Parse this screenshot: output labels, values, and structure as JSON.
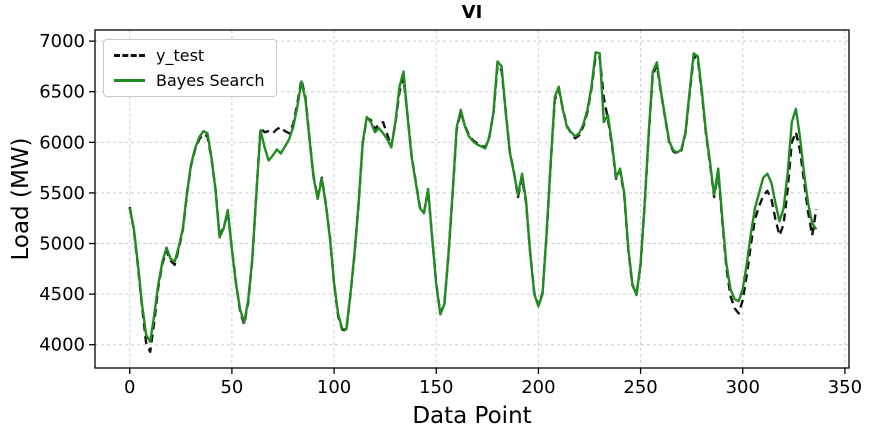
{
  "chart": {
    "title": "VI",
    "xlabel": "Data Point",
    "ylabel": "Load (MW)",
    "legend": [
      {
        "label": "y_test",
        "color": "#111111",
        "style": "dashed"
      },
      {
        "label": "Bayes Search",
        "color": "#228B22",
        "style": "solid"
      }
    ]
  },
  "chart_data": {
    "type": "line",
    "title": "VI",
    "xlabel": "Data Point",
    "ylabel": "Load (MW)",
    "xlim": [
      -17,
      352
    ],
    "ylim": [
      3770,
      7110
    ],
    "xticks": [
      0,
      50,
      100,
      150,
      200,
      250,
      300,
      350
    ],
    "yticks": [
      4000,
      4500,
      5000,
      5500,
      6000,
      6500,
      7000
    ],
    "grid": true,
    "grid_color": "#cccccc",
    "legend_position": "upper-left",
    "x_start": 0,
    "x_step": 2,
    "series": [
      {
        "name": "y_test",
        "color": "#111111",
        "dash": "8 5",
        "width": 2.4,
        "values": [
          5360,
          5140,
          4780,
          4380,
          4020,
          3930,
          4230,
          4570,
          4800,
          4930,
          4830,
          4790,
          4950,
          5140,
          5490,
          5770,
          5930,
          6030,
          6080,
          6060,
          5840,
          5530,
          5070,
          5160,
          5310,
          4950,
          4610,
          4330,
          4200,
          4430,
          4840,
          5500,
          6140,
          6100,
          6110,
          6090,
          6130,
          6150,
          6110,
          6090,
          6180,
          6380,
          6620,
          6440,
          6030,
          5660,
          5450,
          5650,
          5390,
          5060,
          4600,
          4280,
          4150,
          4140,
          4490,
          4890,
          5390,
          5990,
          6240,
          6220,
          6130,
          6180,
          6200,
          6080,
          5960,
          6190,
          6500,
          6640,
          6260,
          5860,
          5610,
          5360,
          5310,
          5520,
          5060,
          4610,
          4310,
          4410,
          4890,
          5490,
          6130,
          6300,
          6170,
          6070,
          6020,
          5990,
          5970,
          5950,
          6060,
          6290,
          6760,
          6710,
          6310,
          5910,
          5710,
          5460,
          5650,
          5400,
          4910,
          4510,
          4390,
          4510,
          5090,
          5790,
          6420,
          6520,
          6330,
          6160,
          6090,
          6040,
          6070,
          6160,
          6300,
          6530,
          6850,
          6840,
          6440,
          6230,
          5970,
          5640,
          5720,
          5480,
          4940,
          4590,
          4500,
          4790,
          5390,
          6090,
          6670,
          6760,
          6490,
          6240,
          6000,
          5910,
          5890,
          5920,
          6090,
          6480,
          6850,
          6820,
          6480,
          6080,
          5780,
          5460,
          5710,
          5220,
          4760,
          4480,
          4360,
          4310,
          4440,
          4690,
          4990,
          5240,
          5370,
          5470,
          5520,
          5440,
          5240,
          5080,
          5190,
          5540,
          6000,
          6100,
          5920,
          5620,
          5310,
          5080,
          5340
        ]
      },
      {
        "name": "Bayes Search",
        "color": "#228B22",
        "dash": "",
        "width": 2.4,
        "values": [
          5350,
          5150,
          4800,
          4400,
          4100,
          4030,
          4300,
          4600,
          4820,
          4960,
          4850,
          4820,
          4970,
          5150,
          5500,
          5780,
          5940,
          6050,
          6110,
          6090,
          5850,
          5520,
          5060,
          5150,
          5330,
          4940,
          4600,
          4350,
          4220,
          4450,
          4850,
          5500,
          6120,
          5950,
          5820,
          5870,
          5930,
          5890,
          5960,
          6030,
          6150,
          6350,
          6600,
          6420,
          6020,
          5650,
          5440,
          5640,
          5380,
          5050,
          4610,
          4300,
          4160,
          4150,
          4500,
          4900,
          5400,
          6000,
          6250,
          6200,
          6100,
          6140,
          6090,
          6030,
          5950,
          6200,
          6550,
          6700,
          6250,
          5850,
          5600,
          5350,
          5300,
          5540,
          5050,
          4600,
          4300,
          4400,
          4900,
          5500,
          6150,
          6320,
          6160,
          6060,
          6010,
          5980,
          5960,
          5940,
          6050,
          6300,
          6800,
          6750,
          6300,
          5900,
          5700,
          5480,
          5690,
          5420,
          4900,
          4500,
          4380,
          4500,
          5100,
          5800,
          6450,
          6550,
          6320,
          6150,
          6100,
          6060,
          6090,
          6180,
          6320,
          6550,
          6890,
          6880,
          6200,
          6270,
          5990,
          5650,
          5740,
          5500,
          4950,
          4600,
          4490,
          4800,
          5400,
          6100,
          6700,
          6790,
          6500,
          6250,
          6010,
          5920,
          5900,
          5930,
          6100,
          6500,
          6880,
          6850,
          6500,
          6100,
          5800,
          5480,
          5740,
          5250,
          4800,
          4550,
          4450,
          4430,
          4550,
          4800,
          5100,
          5350,
          5500,
          5650,
          5690,
          5600,
          5400,
          5220,
          5350,
          5700,
          6200,
          6330,
          6050,
          5700,
          5400,
          5200,
          5140
        ]
      }
    ]
  }
}
